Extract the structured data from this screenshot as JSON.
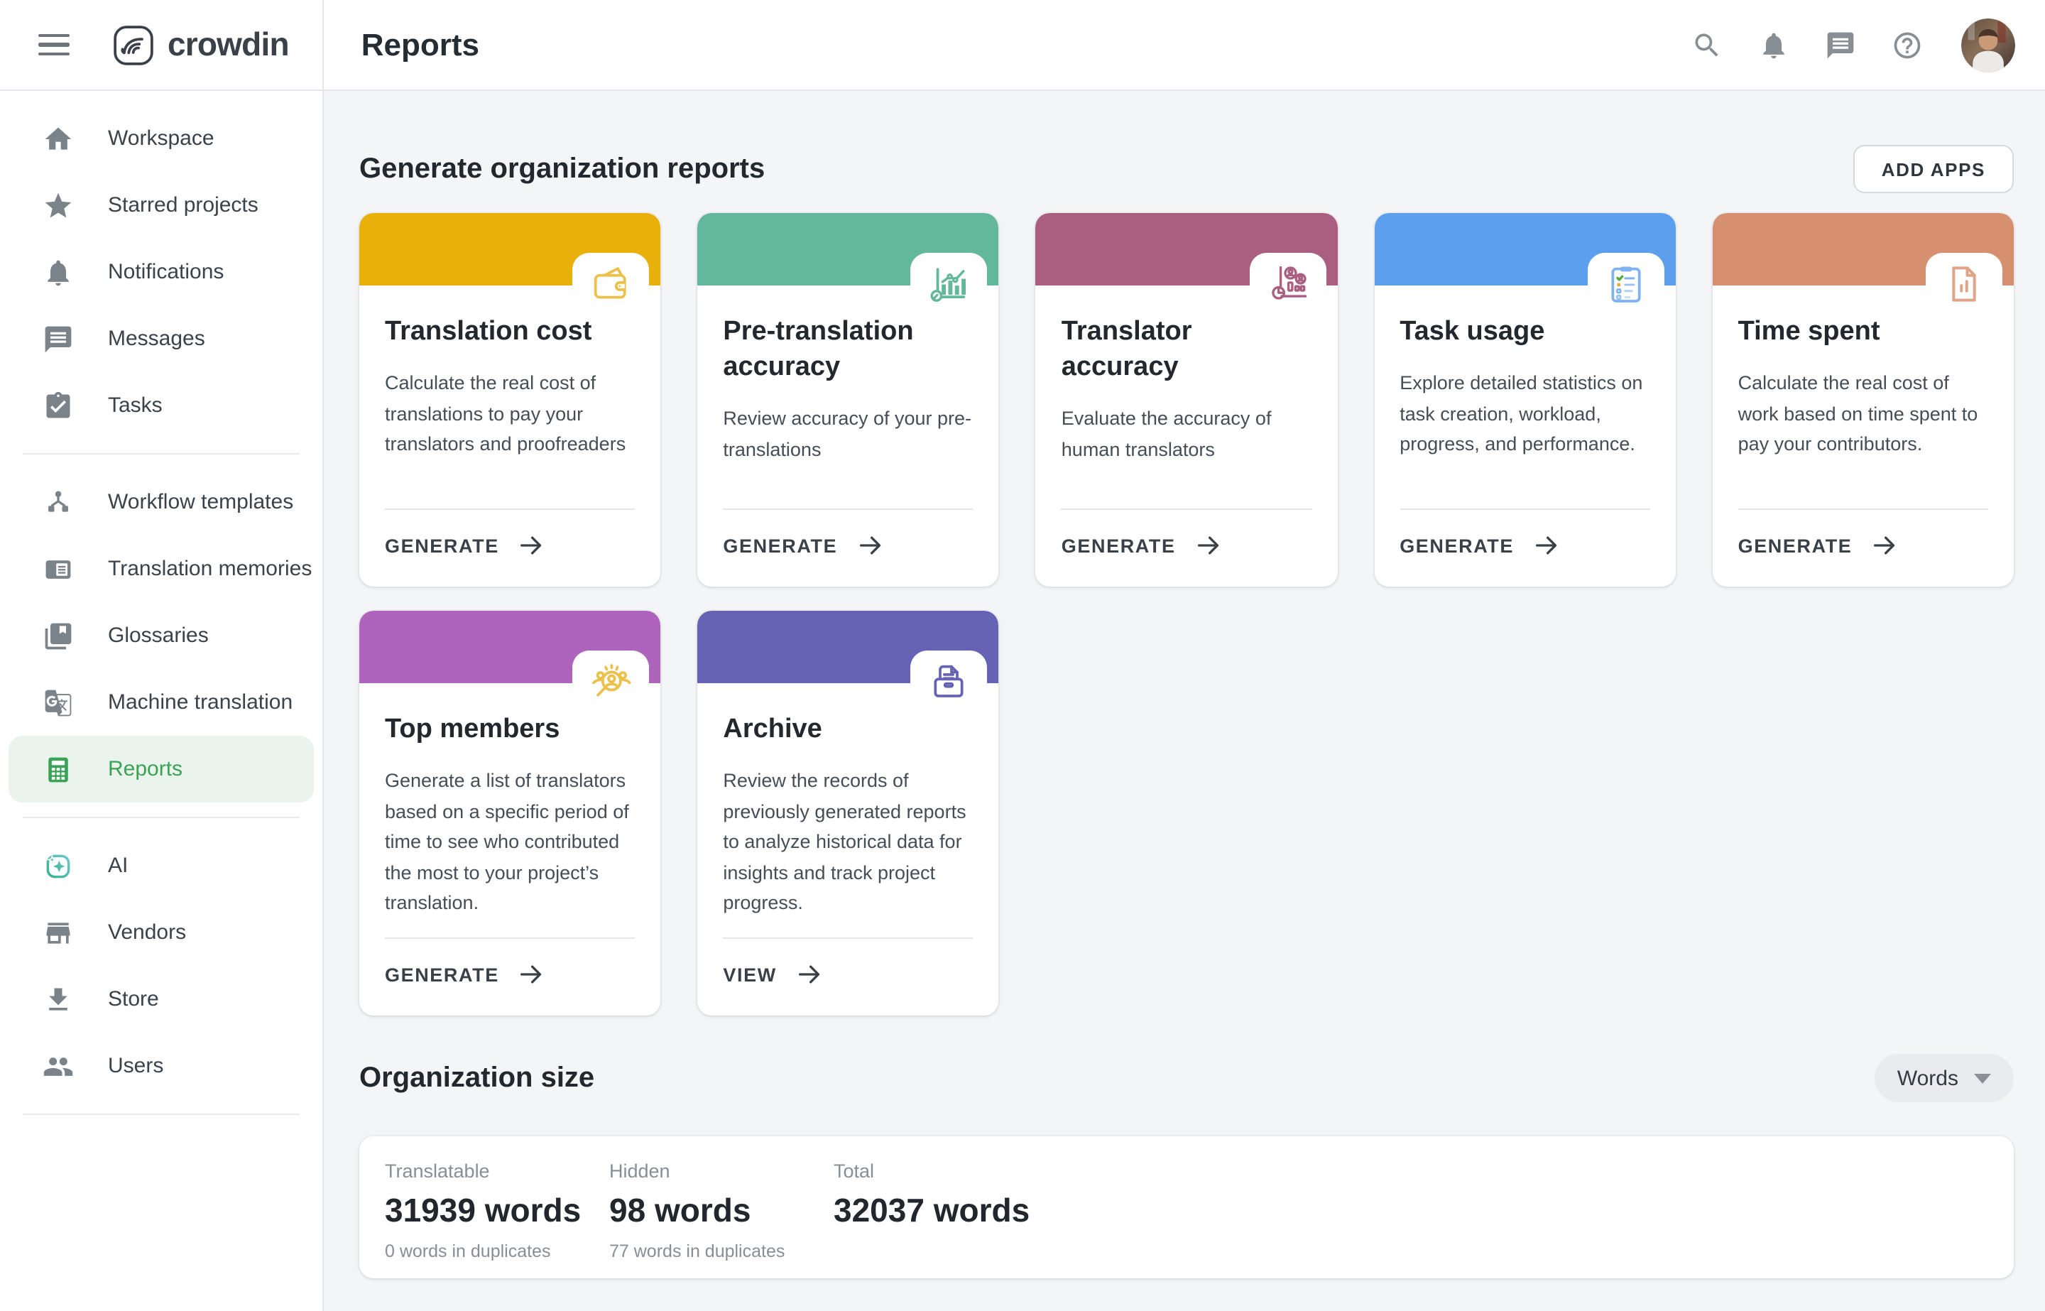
{
  "topbar": {
    "brand": "crowdin",
    "title": "Reports",
    "icons": [
      "search-icon",
      "notifications-icon",
      "messages-icon",
      "help-icon"
    ]
  },
  "sidebar": {
    "groups": [
      {
        "items": [
          {
            "label": "Workspace",
            "icon": "home-icon"
          },
          {
            "label": "Starred projects",
            "icon": "star-icon"
          },
          {
            "label": "Notifications",
            "icon": "bell-icon"
          },
          {
            "label": "Messages",
            "icon": "chat-icon"
          },
          {
            "label": "Tasks",
            "icon": "tasks-icon"
          }
        ]
      },
      {
        "items": [
          {
            "label": "Workflow templates",
            "icon": "workflow-icon"
          },
          {
            "label": "Translation memories",
            "icon": "translation-memory-icon"
          },
          {
            "label": "Glossaries",
            "icon": "glossary-icon"
          },
          {
            "label": "Machine translation",
            "icon": "machine-translation-icon"
          },
          {
            "label": "Reports",
            "icon": "reports-icon",
            "active": true
          }
        ]
      },
      {
        "items": [
          {
            "label": "AI",
            "icon": "ai-icon"
          },
          {
            "label": "Vendors",
            "icon": "vendors-icon"
          },
          {
            "label": "Store",
            "icon": "store-icon"
          },
          {
            "label": "Users",
            "icon": "users-icon"
          }
        ]
      }
    ]
  },
  "reports_section": {
    "heading": "Generate organization reports",
    "add_apps_label": "ADD APPS",
    "cards": [
      {
        "title": "Translation cost",
        "description": "Calculate the real cost of translations to pay your translators and proofreaders",
        "action": "GENERATE",
        "color": "#e9af0b",
        "icon": "wallet-icon",
        "icon_color": "#ecc04a"
      },
      {
        "title": "Pre-translation accuracy",
        "description": "Review accuracy of your pre-translations",
        "action": "GENERATE",
        "color": "#63b79b",
        "icon": "accuracy-chart-icon",
        "icon_color": "#63b79b"
      },
      {
        "title": "Translator accuracy",
        "description": "Evaluate the accuracy of human translators",
        "action": "GENERATE",
        "color": "#aa5f80",
        "icon": "translator-stats-icon",
        "icon_color": "#aa5f80"
      },
      {
        "title": "Task usage",
        "description": "Explore detailed statistics on task creation, workload, progress, and performance.",
        "action": "GENERATE",
        "color": "#5c9fed",
        "icon": "task-checklist-icon",
        "icon_color": "#7fb3ef"
      },
      {
        "title": "Time spent",
        "description": "Calculate the real cost of work based on time spent to pay your contributors.",
        "action": "GENERATE",
        "color": "#d69070",
        "icon": "time-report-icon",
        "icon_color": "#e0a487"
      },
      {
        "title": "Top members",
        "description": "Generate a list of translators based on a specific period of time to see who contributed the most to your project’s translation.",
        "action": "GENERATE",
        "color": "#ae63bc",
        "icon": "member-search-icon",
        "icon_color": "#ecc04a"
      },
      {
        "title": "Archive",
        "description": "Review the records of previously generated reports to analyze historical data for insights and track project progress.",
        "action": "VIEW",
        "color": "#6662b4",
        "icon": "archive-icon",
        "icon_color": "#6662b4"
      }
    ]
  },
  "org_size_section": {
    "heading": "Organization size",
    "unit_selector": "Words",
    "stats": [
      {
        "label": "Translatable",
        "value": "31939 words",
        "sub": "0 words in duplicates"
      },
      {
        "label": "Hidden",
        "value": "98 words",
        "sub": "77 words in duplicates"
      },
      {
        "label": "Total",
        "value": "32037 words",
        "sub": ""
      }
    ]
  }
}
